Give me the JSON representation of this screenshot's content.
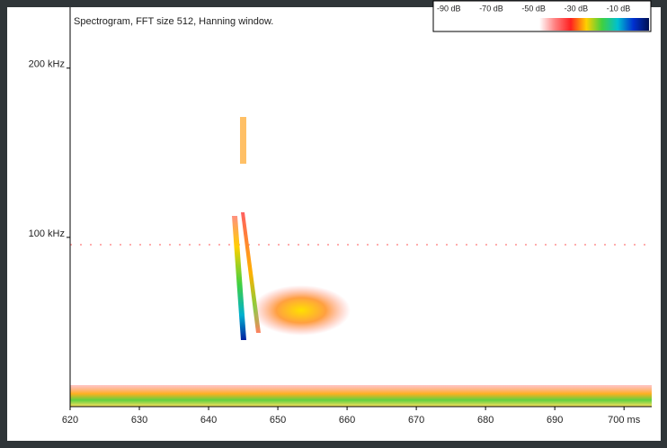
{
  "chart_data": {
    "type": "spectrogram",
    "title": "Spectrogram, FFT size 512, Hanning window.",
    "colorbar": {
      "labels": [
        "-90 dB",
        "-70 dB",
        "-50 dB",
        "-30 dB",
        "-10 dB"
      ],
      "colors": [
        "#ffffff",
        "#ff8080",
        "#ff2020",
        "#ffd000",
        "#40d040",
        "#00c0d0",
        "#0030d0",
        "#001050"
      ]
    },
    "xlim": [
      620,
      704
    ],
    "xticks": [
      620,
      630,
      640,
      650,
      660,
      670,
      680,
      690,
      {
        "value": 700,
        "label": "700 ms"
      }
    ],
    "ylim": [
      0,
      236
    ],
    "yticks": [
      {
        "value": 100,
        "label": "100 kHz"
      },
      {
        "value": 200,
        "label": "200 kHz"
      }
    ]
  }
}
